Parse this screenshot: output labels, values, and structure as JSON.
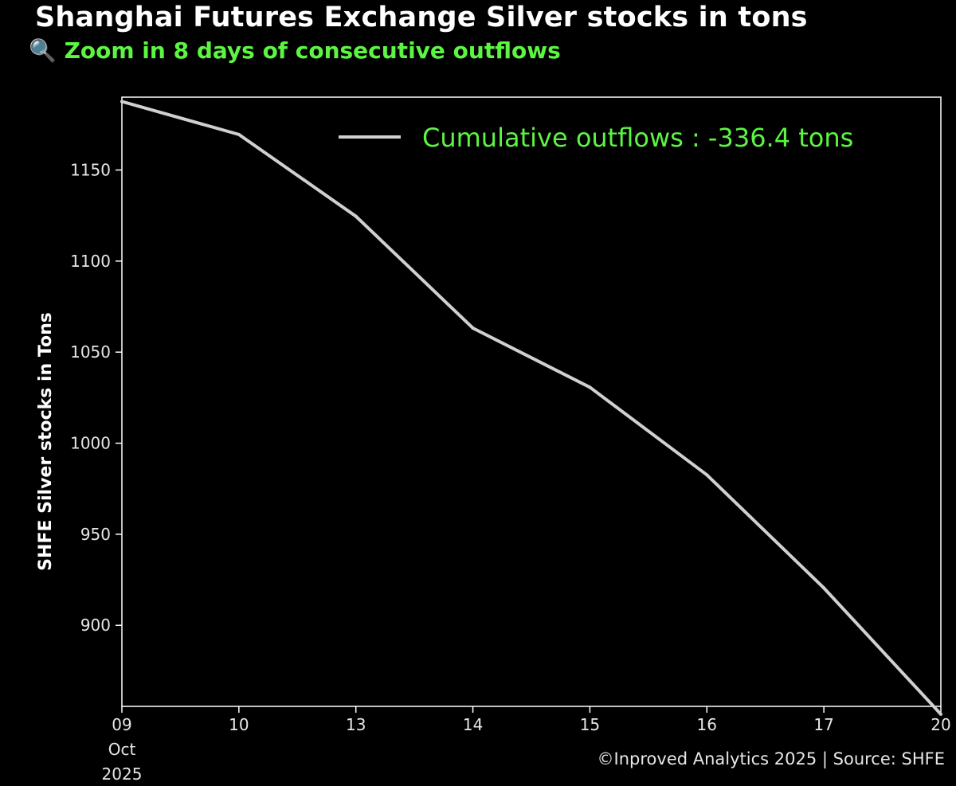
{
  "header": {
    "title": "Shanghai Futures Exchange Silver stocks in tons",
    "subtitle": "🔍 Zoom in 8 days of consecutive outflows"
  },
  "footer": {
    "credit": "©Inproved Analytics 2025 | Source: SHFE"
  },
  "colors": {
    "background": "#000000",
    "line": "#d0d0d0",
    "accent_green": "#5cf542",
    "text": "#ffffff",
    "tick_text": "#e6e6e6"
  },
  "chart_data": {
    "type": "line",
    "title": "Shanghai Futures Exchange Silver stocks in tons",
    "subtitle": "🔍 Zoom in 8 days of consecutive outflows",
    "xlabel": "",
    "ylabel": "SHFE Silver stocks in Tons",
    "x": [
      "2025-10-09",
      "2025-10-10",
      "2025-10-13",
      "2025-10-14",
      "2025-10-15",
      "2025-10-16",
      "2025-10-17",
      "2025-10-20"
    ],
    "x_tick_labels": [
      "09\nOct\n2025",
      "10",
      "13",
      "14",
      "15",
      "16",
      "17",
      "20"
    ],
    "series": [
      {
        "name": "Cumulative outflows : -336.4 tons",
        "values": [
          1187.6,
          1169.5,
          1124.6,
          1063.2,
          1030.7,
          982.6,
          920.5,
          851.2
        ]
      }
    ],
    "yticks": [
      900,
      950,
      1000,
      1050,
      1100,
      1150
    ],
    "ylim": [
      855.5,
      1190
    ],
    "grid": false,
    "legend_placement": "top-right"
  }
}
